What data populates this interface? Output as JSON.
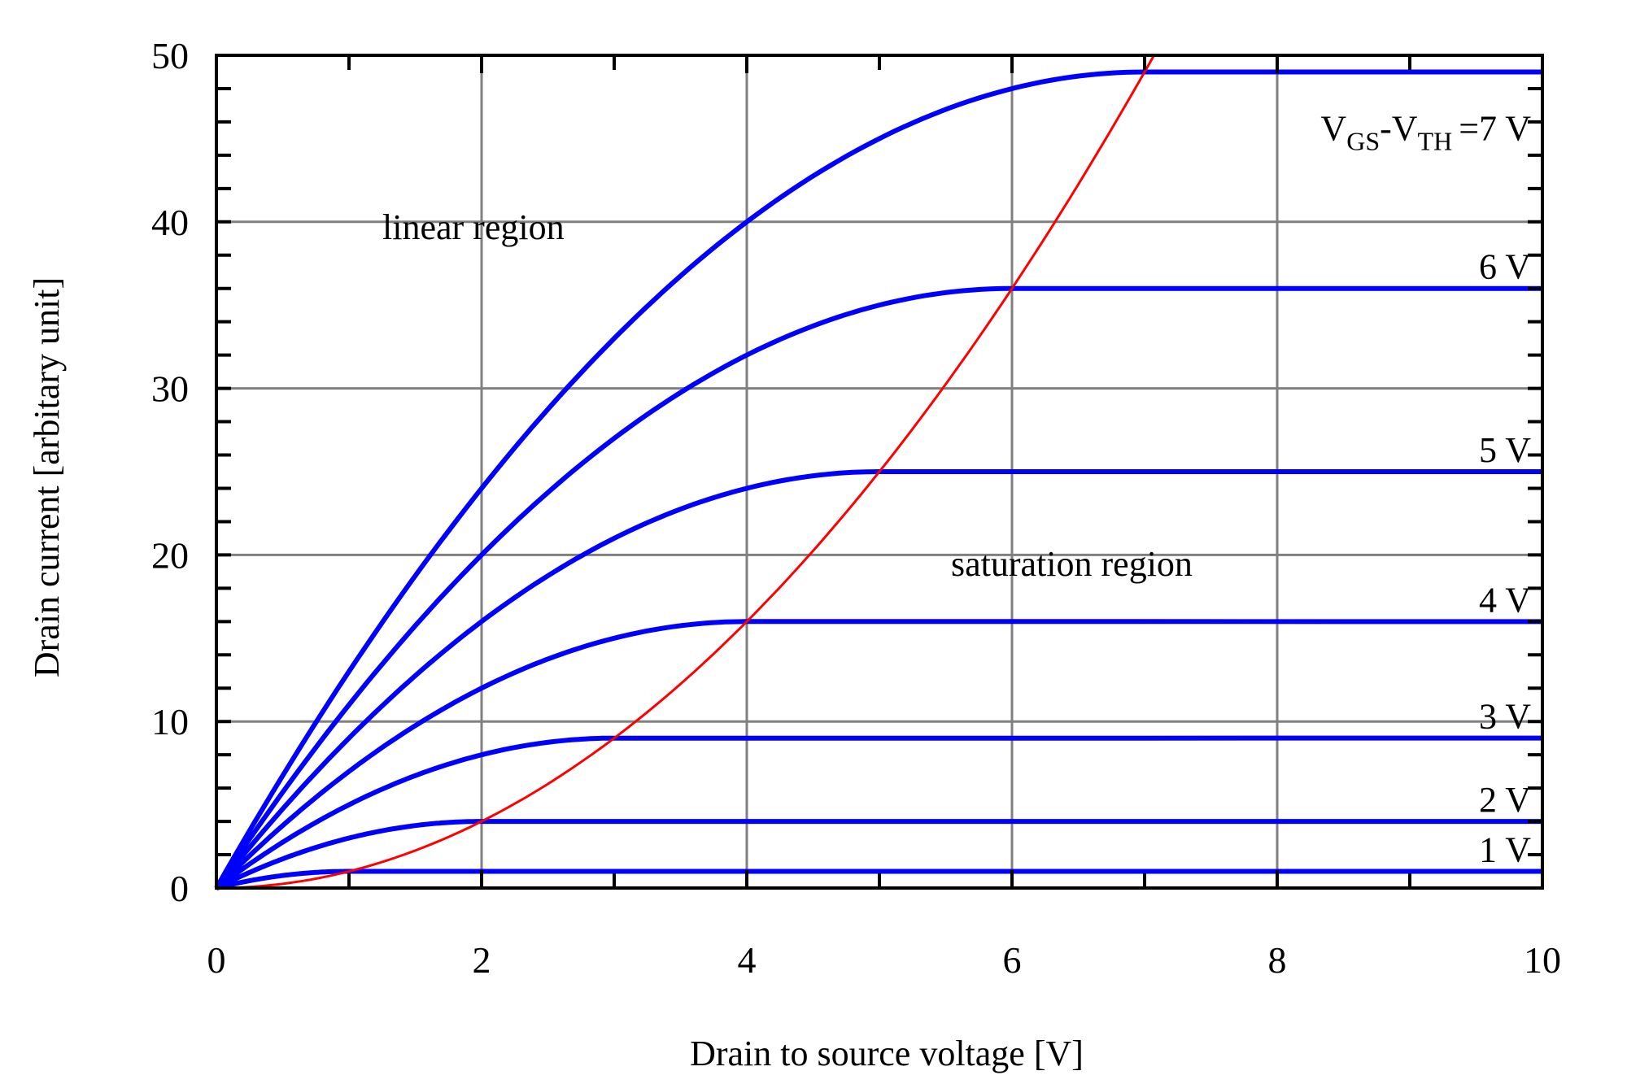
{
  "chart_data": {
    "type": "line",
    "title": "",
    "xlabel": "Drain to source voltage [V]",
    "ylabel": "Drain current [arbitary unit]",
    "xlim": [
      0,
      10
    ],
    "ylim": [
      0,
      50
    ],
    "xticks": [
      "0",
      "2",
      "4",
      "6",
      "8",
      "10"
    ],
    "yticks": [
      "0",
      "10",
      "20",
      "30",
      "40",
      "50"
    ],
    "grid": true,
    "series": [
      {
        "name": "1 V",
        "overdrive": 1,
        "saturation_current": 1,
        "color": "#0000ff"
      },
      {
        "name": "2 V",
        "overdrive": 2,
        "saturation_current": 4,
        "color": "#0000ff"
      },
      {
        "name": "3 V",
        "overdrive": 3,
        "saturation_current": 9,
        "color": "#0000ff"
      },
      {
        "name": "4 V",
        "overdrive": 4,
        "saturation_current": 16,
        "color": "#0000ff"
      },
      {
        "name": "5 V",
        "overdrive": 5,
        "saturation_current": 25,
        "color": "#0000ff"
      },
      {
        "name": "6 V",
        "overdrive": 6,
        "saturation_current": 36,
        "color": "#0000ff"
      },
      {
        "name": "=7 V",
        "overdrive": 7,
        "saturation_current": 49,
        "color": "#0000ff"
      }
    ],
    "boundary_curve": {
      "color": "#ff0000"
    },
    "label_prefix": {
      "v1": "V",
      "sub1": "GS",
      "dash": "-",
      "v2": "V",
      "sub2": "TH"
    },
    "annotations": {
      "linear": "linear region",
      "saturation": "saturation region"
    }
  }
}
